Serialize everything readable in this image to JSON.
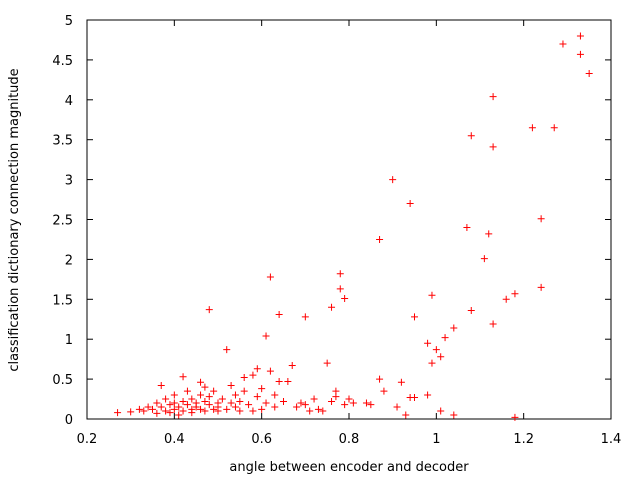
{
  "chart_data": {
    "type": "scatter",
    "xlabel": "angle between encoder and decoder",
    "ylabel": "classification dictionary connection magnitude",
    "xlim": [
      0.2,
      1.4
    ],
    "ylim": [
      0,
      5
    ],
    "x_ticks": [
      "0.2",
      "0.4",
      "0.6",
      "0.8",
      "1",
      "1.2",
      "1.4"
    ],
    "y_ticks": [
      "0",
      "0.5",
      "1",
      "1.5",
      "2",
      "2.5",
      "3",
      "3.5",
      "4",
      "4.5",
      "5"
    ],
    "grid": false,
    "legend": "none",
    "marker": "plus",
    "color": "#ff0000",
    "points": [
      [
        0.27,
        0.08
      ],
      [
        0.3,
        0.09
      ],
      [
        0.32,
        0.12
      ],
      [
        0.33,
        0.1
      ],
      [
        0.34,
        0.15
      ],
      [
        0.35,
        0.12
      ],
      [
        0.36,
        0.2
      ],
      [
        0.36,
        0.07
      ],
      [
        0.37,
        0.42
      ],
      [
        0.37,
        0.15
      ],
      [
        0.38,
        0.25
      ],
      [
        0.38,
        0.1
      ],
      [
        0.39,
        0.18
      ],
      [
        0.39,
        0.08
      ],
      [
        0.4,
        0.3
      ],
      [
        0.4,
        0.12
      ],
      [
        0.4,
        0.2
      ],
      [
        0.41,
        0.05
      ],
      [
        0.41,
        0.15
      ],
      [
        0.42,
        0.53
      ],
      [
        0.42,
        0.22
      ],
      [
        0.42,
        0.1
      ],
      [
        0.43,
        0.35
      ],
      [
        0.43,
        0.18
      ],
      [
        0.44,
        0.12
      ],
      [
        0.44,
        0.25
      ],
      [
        0.44,
        0.08
      ],
      [
        0.45,
        0.2
      ],
      [
        0.45,
        0.15
      ],
      [
        0.46,
        0.46
      ],
      [
        0.46,
        0.3
      ],
      [
        0.46,
        0.12
      ],
      [
        0.47,
        0.22
      ],
      [
        0.47,
        0.1
      ],
      [
        0.47,
        0.4
      ],
      [
        0.48,
        1.37
      ],
      [
        0.48,
        0.18
      ],
      [
        0.48,
        0.28
      ],
      [
        0.49,
        0.12
      ],
      [
        0.49,
        0.35
      ],
      [
        0.5,
        0.2
      ],
      [
        0.5,
        0.1
      ],
      [
        0.5,
        0.15
      ],
      [
        0.51,
        0.25
      ],
      [
        0.52,
        0.87
      ],
      [
        0.52,
        0.12
      ],
      [
        0.53,
        0.42
      ],
      [
        0.53,
        0.2
      ],
      [
        0.54,
        0.15
      ],
      [
        0.54,
        0.3
      ],
      [
        0.55,
        0.1
      ],
      [
        0.55,
        0.22
      ],
      [
        0.56,
        0.35
      ],
      [
        0.56,
        0.52
      ],
      [
        0.57,
        0.18
      ],
      [
        0.58,
        0.55
      ],
      [
        0.58,
        0.1
      ],
      [
        0.59,
        0.63
      ],
      [
        0.59,
        0.28
      ],
      [
        0.6,
        0.38
      ],
      [
        0.6,
        0.12
      ],
      [
        0.61,
        1.04
      ],
      [
        0.61,
        0.2
      ],
      [
        0.62,
        1.78
      ],
      [
        0.62,
        0.6
      ],
      [
        0.63,
        0.3
      ],
      [
        0.63,
        0.15
      ],
      [
        0.64,
        1.31
      ],
      [
        0.64,
        0.47
      ],
      [
        0.65,
        0.22
      ],
      [
        0.66,
        0.47
      ],
      [
        0.67,
        0.67
      ],
      [
        0.68,
        0.15
      ],
      [
        0.69,
        0.2
      ],
      [
        0.7,
        1.28
      ],
      [
        0.7,
        0.18
      ],
      [
        0.71,
        0.1
      ],
      [
        0.72,
        0.25
      ],
      [
        0.73,
        0.12
      ],
      [
        0.74,
        0.1
      ],
      [
        0.75,
        0.7
      ],
      [
        0.76,
        0.22
      ],
      [
        0.76,
        1.4
      ],
      [
        0.77,
        0.35
      ],
      [
        0.77,
        0.28
      ],
      [
        0.78,
        1.82
      ],
      [
        0.78,
        1.63
      ],
      [
        0.79,
        1.51
      ],
      [
        0.79,
        0.18
      ],
      [
        0.8,
        0.25
      ],
      [
        0.81,
        0.2
      ],
      [
        0.84,
        0.2
      ],
      [
        0.85,
        0.18
      ],
      [
        0.87,
        2.25
      ],
      [
        0.87,
        0.5
      ],
      [
        0.88,
        0.35
      ],
      [
        0.9,
        3.0
      ],
      [
        0.91,
        0.15
      ],
      [
        0.92,
        0.46
      ],
      [
        0.93,
        0.05
      ],
      [
        0.94,
        2.7
      ],
      [
        0.94,
        0.27
      ],
      [
        0.95,
        1.28
      ],
      [
        0.95,
        0.27
      ],
      [
        0.98,
        0.95
      ],
      [
        0.98,
        0.3
      ],
      [
        0.99,
        1.55
      ],
      [
        0.99,
        0.7
      ],
      [
        1.0,
        0.87
      ],
      [
        1.01,
        0.78
      ],
      [
        1.01,
        0.1
      ],
      [
        1.02,
        1.02
      ],
      [
        1.04,
        1.14
      ],
      [
        1.04,
        0.05
      ],
      [
        1.07,
        2.4
      ],
      [
        1.08,
        3.55
      ],
      [
        1.08,
        1.36
      ],
      [
        1.11,
        2.01
      ],
      [
        1.12,
        2.32
      ],
      [
        1.13,
        3.41
      ],
      [
        1.13,
        4.04
      ],
      [
        1.13,
        1.19
      ],
      [
        1.16,
        1.5
      ],
      [
        1.18,
        1.57
      ],
      [
        1.18,
        0.02
      ],
      [
        1.22,
        3.65
      ],
      [
        1.24,
        2.51
      ],
      [
        1.24,
        1.65
      ],
      [
        1.27,
        3.65
      ],
      [
        1.29,
        4.7
      ],
      [
        1.33,
        4.57
      ],
      [
        1.33,
        4.8
      ],
      [
        1.35,
        4.33
      ]
    ]
  }
}
